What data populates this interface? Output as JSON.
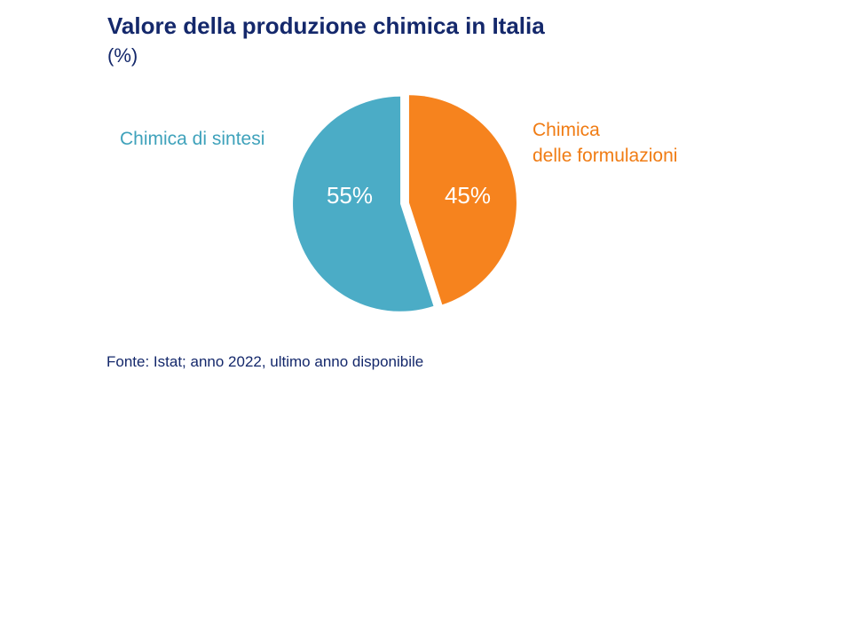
{
  "header": {
    "title": "Valore della produzione chimica in Italia",
    "subtitle": "(%)"
  },
  "chart_data": {
    "type": "pie",
    "title": "Valore della produzione chimica in Italia",
    "unit": "(%)",
    "slices": [
      {
        "label": "Chimica delle formulazioni",
        "value": 45,
        "color": "#F6831E",
        "data_label": "45%"
      },
      {
        "label": "Chimica di sintesi",
        "value": 55,
        "color": "#4BACC6",
        "data_label": "55%"
      }
    ],
    "start_angle_deg": 0,
    "direction": "clockwise",
    "exploded_gap": true,
    "legend_position": "callout-labels-beside-pie",
    "source": "Fonte: Istat; anno 2022, ultimo anno disponibile"
  },
  "labels": {
    "left": "Chimica di sintesi",
    "right_line1": "Chimica",
    "right_line2": "delle formulazioni"
  },
  "footer": {
    "source": "Fonte: Istat; anno 2022, ultimo anno disponibile"
  },
  "colors": {
    "navy": "#14286B",
    "teal": "#4BACC6",
    "orange": "#F6831E",
    "data_label_text": "#FFFFFF"
  }
}
